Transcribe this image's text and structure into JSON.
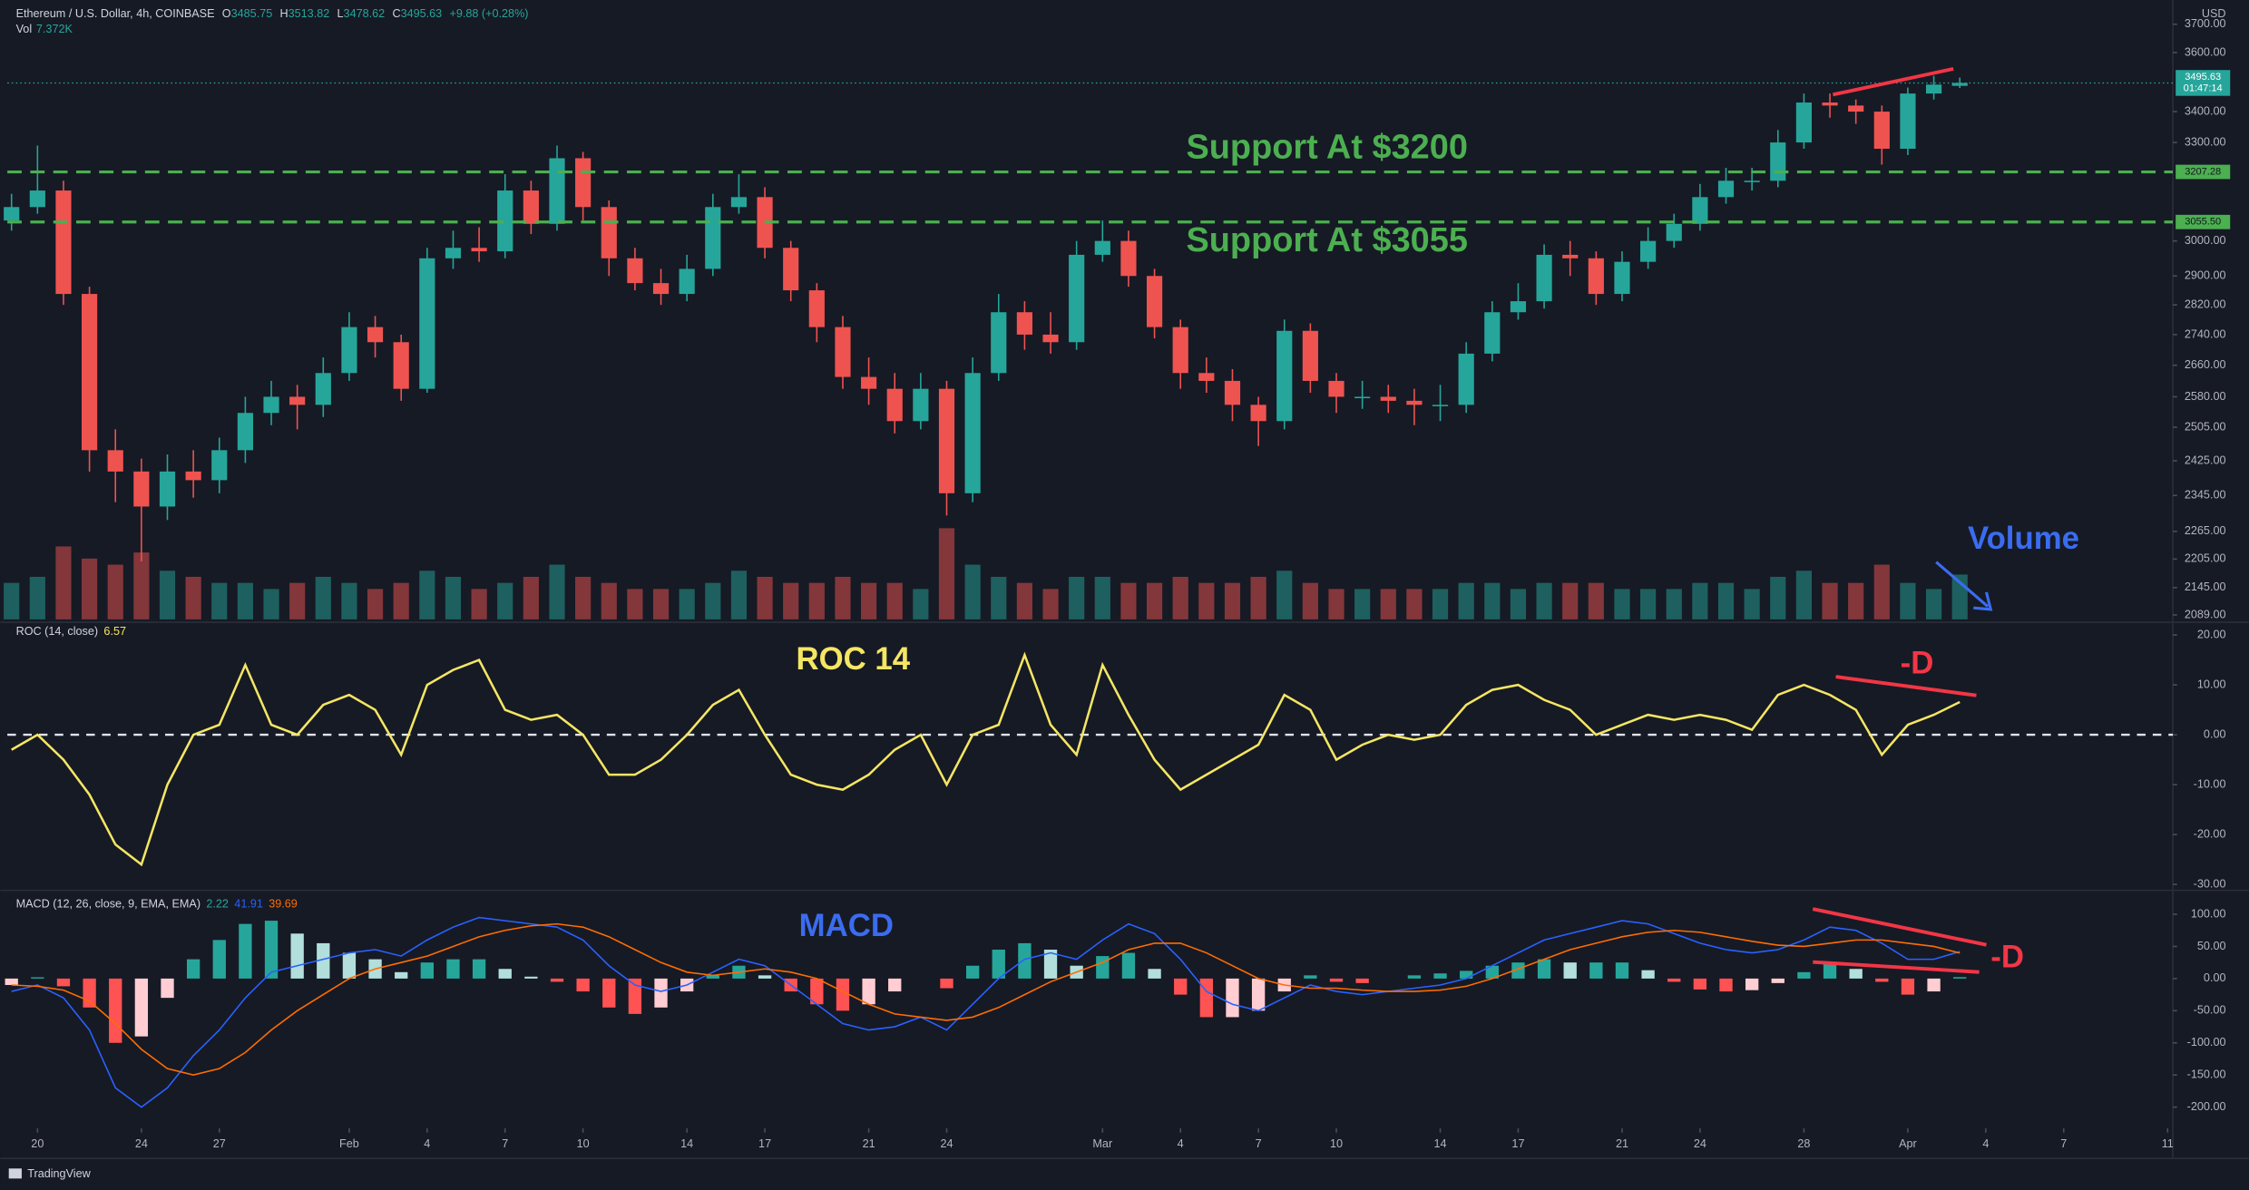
{
  "header": {
    "symbol": "Ethereum / U.S. Dollar, 4h, COINBASE",
    "ohlc": [
      {
        "key": "O",
        "value": 3485.75
      },
      {
        "key": "H",
        "value": 3513.82
      },
      {
        "key": "L",
        "value": 3478.62
      },
      {
        "key": "C",
        "value": 3495.63
      }
    ],
    "change": "+9.88 (+0.28%)",
    "volume_key": "Vol",
    "currency": "USD"
  },
  "chart_data": [
    {
      "type": "candlestick",
      "log_scale": true,
      "up_color": "#26a69a",
      "down_color": "#ef5350",
      "volume_up_color": "rgba(38,166,154,0.5)",
      "volume_down_color": "rgba(239,83,80,0.5)",
      "volume_label": "7.372K",
      "x": [
        -1,
        0,
        1,
        2,
        3,
        4,
        5,
        6,
        7,
        8,
        9,
        10,
        11,
        12,
        13,
        14,
        15,
        16,
        17,
        18,
        19,
        20,
        21,
        22,
        23,
        24,
        25,
        26,
        27,
        28,
        29,
        30,
        31,
        32,
        33,
        34,
        35,
        36,
        37,
        38,
        39,
        40,
        41,
        42,
        43,
        44,
        45,
        46,
        47,
        48,
        49,
        50,
        51,
        52,
        53,
        54,
        55,
        56,
        57,
        58,
        59,
        60,
        61,
        62,
        63,
        64,
        65,
        66,
        67,
        68,
        69,
        70,
        71,
        72,
        73,
        74
      ],
      "open": [
        3060,
        3100,
        3150,
        2850,
        2450,
        2400,
        2320,
        2400,
        2380,
        2450,
        2540,
        2580,
        2560,
        2640,
        2760,
        2720,
        2600,
        2950,
        2980,
        2970,
        3150,
        3050,
        3250,
        3100,
        2950,
        2880,
        2850,
        2920,
        3100,
        3130,
        2980,
        2860,
        2760,
        2630,
        2600,
        2520,
        2600,
        2350,
        2640,
        2800,
        2740,
        2720,
        2960,
        3000,
        2900,
        2760,
        2640,
        2620,
        2560,
        2520,
        2750,
        2620,
        2580,
        2580,
        2570,
        2560,
        2560,
        2690,
        2800,
        2830,
        2960,
        2950,
        2850,
        2940,
        3000,
        3050,
        3130,
        3180,
        3180,
        3300,
        3430,
        3420,
        3400,
        3280,
        3460,
        3485.75
      ],
      "high": [
        3140,
        3290,
        3180,
        2870,
        2500,
        2430,
        2440,
        2450,
        2480,
        2580,
        2620,
        2610,
        2680,
        2800,
        2790,
        2740,
        2980,
        3030,
        3040,
        3200,
        3180,
        3290,
        3270,
        3120,
        2980,
        2920,
        2960,
        3140,
        3200,
        3160,
        3000,
        2880,
        2790,
        2680,
        2640,
        2640,
        2620,
        2680,
        2850,
        2830,
        2800,
        3000,
        3060,
        3030,
        2920,
        2780,
        2680,
        2650,
        2580,
        2780,
        2770,
        2640,
        2620,
        2610,
        2600,
        2610,
        2720,
        2830,
        2880,
        2990,
        3000,
        2970,
        2970,
        3040,
        3080,
        3170,
        3220,
        3220,
        3340,
        3460,
        3460,
        3440,
        3420,
        3480,
        3520,
        3513.82
      ],
      "low": [
        3030,
        3080,
        2820,
        2400,
        2330,
        2200,
        2290,
        2340,
        2350,
        2420,
        2510,
        2500,
        2530,
        2620,
        2680,
        2570,
        2590,
        2920,
        2940,
        2950,
        3020,
        3030,
        3060,
        2900,
        2860,
        2820,
        2830,
        2900,
        3080,
        2950,
        2830,
        2720,
        2600,
        2560,
        2490,
        2500,
        2300,
        2330,
        2620,
        2700,
        2690,
        2700,
        2940,
        2870,
        2730,
        2600,
        2590,
        2520,
        2460,
        2500,
        2590,
        2540,
        2550,
        2540,
        2510,
        2520,
        2540,
        2670,
        2780,
        2810,
        2900,
        2820,
        2830,
        2920,
        2980,
        3030,
        3110,
        3150,
        3160,
        3280,
        3380,
        3360,
        3230,
        3260,
        3440,
        3478.62
      ],
      "close": [
        3100,
        3150,
        2850,
        2450,
        2400,
        2320,
        2400,
        2380,
        2450,
        2540,
        2580,
        2560,
        2640,
        2760,
        2720,
        2600,
        2950,
        2980,
        2970,
        3150,
        3050,
        3250,
        3100,
        2950,
        2880,
        2850,
        2920,
        3100,
        3130,
        2980,
        2860,
        2760,
        2630,
        2600,
        2520,
        2600,
        2350,
        2640,
        2800,
        2740,
        2720,
        2960,
        3000,
        2900,
        2760,
        2640,
        2620,
        2560,
        2520,
        2750,
        2620,
        2580,
        2580,
        2570,
        2560,
        2560,
        2690,
        2800,
        2830,
        2960,
        2950,
        2850,
        2940,
        3000,
        3050,
        3130,
        3180,
        3180,
        3300,
        3430,
        3420,
        3400,
        3280,
        3460,
        3490,
        3495.63
      ],
      "volume": [
        6,
        7,
        12,
        10,
        9,
        11,
        8,
        7,
        6,
        6,
        5,
        6,
        7,
        6,
        5,
        6,
        8,
        7,
        5,
        6,
        7,
        9,
        7,
        6,
        5,
        5,
        5,
        6,
        8,
        7,
        6,
        6,
        7,
        6,
        6,
        5,
        15,
        9,
        7,
        6,
        5,
        7,
        7,
        6,
        6,
        7,
        6,
        6,
        7,
        8,
        6,
        5,
        5,
        5,
        5,
        5,
        6,
        6,
        5,
        6,
        6,
        6,
        5,
        5,
        5,
        6,
        6,
        5,
        7,
        8,
        6,
        6,
        9,
        6,
        5,
        7.372
      ],
      "vlim": [
        0,
        100
      ],
      "xlim": [
        -1.16,
        82.2
      ],
      "ylim": [
        2080,
        3746
      ],
      "yticks": [
        {
          "value": 3700,
          "label": "3700.00"
        },
        {
          "value": 3600,
          "label": "3600.00"
        },
        {
          "value": 3400,
          "label": "3400.00"
        },
        {
          "value": 3300,
          "label": "3300.00"
        },
        {
          "value": 3000,
          "label": "3000.00"
        },
        {
          "value": 2900,
          "label": "2900.00"
        },
        {
          "value": 2820,
          "label": "2820.00"
        },
        {
          "value": 2740,
          "label": "2740.00"
        },
        {
          "value": 2660,
          "label": "2660.00"
        },
        {
          "value": 2580,
          "label": "2580.00"
        },
        {
          "value": 2505,
          "label": "2505.00"
        },
        {
          "value": 2425,
          "label": "2425.00"
        },
        {
          "value": 2345,
          "label": "2345.00"
        },
        {
          "value": 2265,
          "label": "2265.00"
        },
        {
          "value": 2205,
          "label": "2205.00"
        },
        {
          "value": 2145,
          "label": "2145.00"
        },
        {
          "value": 2089,
          "label": "2089.00"
        }
      ],
      "support_lines": [
        {
          "value": 3207.28,
          "label": "3207.28"
        },
        {
          "value": 3055.5,
          "label": "3055.50"
        }
      ],
      "support_color": "#4caf50",
      "last_price": {
        "value": 3495.63,
        "label": "3495.63",
        "countdown": "01:47:14"
      },
      "annotations": [
        "Support At $3200",
        "Support At $3055",
        "Volume"
      ]
    },
    {
      "type": "line",
      "title": "ROC (14, close)",
      "x": [
        -1,
        0,
        1,
        2,
        3,
        4,
        5,
        6,
        7,
        8,
        9,
        10,
        11,
        12,
        13,
        14,
        15,
        16,
        17,
        18,
        19,
        20,
        21,
        22,
        23,
        24,
        25,
        26,
        27,
        28,
        29,
        30,
        31,
        32,
        33,
        34,
        35,
        36,
        37,
        38,
        39,
        40,
        41,
        42,
        43,
        44,
        45,
        46,
        47,
        48,
        49,
        50,
        51,
        52,
        53,
        54,
        55,
        56,
        57,
        58,
        59,
        60,
        61,
        62,
        63,
        64,
        65,
        66,
        67,
        68,
        69,
        70,
        71,
        72,
        73,
        74
      ],
      "series": [
        {
          "name": "ROC",
          "color": "#f5e663",
          "values": [
            -3,
            0,
            -5,
            -12,
            -22,
            -26,
            -10,
            0,
            2,
            14,
            2,
            0,
            6,
            8,
            5,
            -4,
            10,
            13,
            15,
            5,
            3,
            4,
            0,
            -8,
            -8,
            -5,
            0,
            6,
            9,
            0,
            -8,
            -10,
            -11,
            -8,
            -3,
            0,
            -10,
            0,
            2,
            16,
            2,
            -4,
            14,
            4,
            -5,
            -11,
            -8,
            -5,
            -2,
            8,
            5,
            -5,
            -2,
            0,
            -1,
            0,
            6,
            9,
            10,
            7,
            5,
            0,
            2,
            4,
            3,
            4,
            3,
            1,
            8,
            10,
            8,
            5,
            -4,
            2,
            4,
            6.57
          ]
        }
      ],
      "zero_line": true,
      "xlim": [
        -1.16,
        82.2
      ],
      "ylim": [
        -30.9,
        21.7
      ],
      "yticks": [
        {
          "value": 20,
          "label": "20.00"
        },
        {
          "value": 10,
          "label": "10.00"
        },
        {
          "value": 0,
          "label": "0.00"
        },
        {
          "value": -10,
          "label": "-10.00"
        },
        {
          "value": -20,
          "label": "-20.00"
        },
        {
          "value": -30,
          "label": "-30.00"
        }
      ],
      "annotations": [
        "ROC 14",
        "-D"
      ]
    },
    {
      "type": "macd",
      "title": "MACD (12, 26, close, 9, EMA, EMA)",
      "x": [
        -1,
        0,
        1,
        2,
        3,
        4,
        5,
        6,
        7,
        8,
        9,
        10,
        11,
        12,
        13,
        14,
        15,
        16,
        17,
        18,
        19,
        20,
        21,
        22,
        23,
        24,
        25,
        26,
        27,
        28,
        29,
        30,
        31,
        32,
        33,
        34,
        35,
        36,
        37,
        38,
        39,
        40,
        41,
        42,
        43,
        44,
        45,
        46,
        47,
        48,
        49,
        50,
        51,
        52,
        53,
        54,
        55,
        56,
        57,
        58,
        59,
        60,
        61,
        62,
        63,
        64,
        65,
        66,
        67,
        68,
        69,
        70,
        71,
        72,
        73,
        74
      ],
      "series": [
        {
          "name": "MACD",
          "color": "#2962ff",
          "values": [
            -20,
            -10,
            -30,
            -80,
            -170,
            -200,
            -170,
            -120,
            -80,
            -30,
            10,
            20,
            30,
            40,
            45,
            35,
            60,
            80,
            95,
            90,
            85,
            80,
            60,
            20,
            -10,
            -20,
            -10,
            10,
            30,
            20,
            -10,
            -40,
            -70,
            -80,
            -75,
            -60,
            -80,
            -40,
            0,
            30,
            40,
            30,
            60,
            85,
            70,
            30,
            -20,
            -40,
            -50,
            -30,
            -10,
            -20,
            -25,
            -20,
            -15,
            -10,
            0,
            20,
            40,
            60,
            70,
            80,
            90,
            85,
            70,
            55,
            45,
            40,
            45,
            60,
            80,
            75,
            55,
            30,
            30,
            41.91
          ]
        },
        {
          "name": "Signal",
          "color": "#ff6d00",
          "values": [
            -10,
            -12,
            -18,
            -35,
            -70,
            -110,
            -140,
            -150,
            -140,
            -115,
            -80,
            -50,
            -25,
            0,
            15,
            25,
            35,
            50,
            65,
            75,
            82,
            85,
            80,
            65,
            45,
            25,
            10,
            5,
            10,
            15,
            10,
            0,
            -20,
            -40,
            -55,
            -60,
            -65,
            -60,
            -45,
            -25,
            -5,
            10,
            25,
            45,
            55,
            55,
            40,
            20,
            0,
            -10,
            -15,
            -15,
            -18,
            -20,
            -20,
            -18,
            -12,
            0,
            15,
            30,
            45,
            55,
            65,
            72,
            75,
            72,
            65,
            58,
            52,
            50,
            55,
            60,
            60,
            55,
            50,
            39.69
          ]
        },
        {
          "name": "Histogram",
          "color": "#26a69a",
          "values": [
            -10,
            2,
            -12,
            -45,
            -100,
            -90,
            -30,
            30,
            60,
            85,
            90,
            70,
            55,
            40,
            30,
            10,
            25,
            30,
            30,
            15,
            3,
            -5,
            -20,
            -45,
            -55,
            -45,
            -20,
            5,
            20,
            5,
            -20,
            -40,
            -50,
            -40,
            -20,
            0,
            -15,
            20,
            45,
            55,
            45,
            20,
            35,
            40,
            15,
            -25,
            -60,
            -60,
            -50,
            -20,
            5,
            -5,
            -7,
            0,
            5,
            8,
            12,
            20,
            25,
            30,
            25,
            25,
            25,
            13,
            -5,
            -17,
            -20,
            -18,
            -7,
            10,
            25,
            15,
            -5,
            -25,
            -20,
            2.22
          ]
        }
      ],
      "histogram_colors": [
        "#26a69a",
        "#b2dfdb",
        "#ffcdd2",
        "#ff5252"
      ],
      "xlim": [
        -1.16,
        82.2
      ],
      "ylim": [
        -233,
        135
      ],
      "yticks": [
        {
          "value": 100,
          "label": "100.00"
        },
        {
          "value": 50,
          "label": "50.00"
        },
        {
          "value": 0,
          "label": "0.00"
        },
        {
          "value": -50,
          "label": "-50.00"
        },
        {
          "value": -100,
          "label": "-100.00"
        },
        {
          "value": -150,
          "label": "-150.00"
        },
        {
          "value": -200,
          "label": "-200.00"
        }
      ],
      "xticks": [
        {
          "value": 0,
          "label": "20"
        },
        {
          "value": 4,
          "label": "24"
        },
        {
          "value": 7,
          "label": "27"
        },
        {
          "value": 12,
          "label": "Feb"
        },
        {
          "value": 15,
          "label": "4"
        },
        {
          "value": 18,
          "label": "7"
        },
        {
          "value": 21,
          "label": "10"
        },
        {
          "value": 25,
          "label": "14"
        },
        {
          "value": 28,
          "label": "17"
        },
        {
          "value": 32,
          "label": "21"
        },
        {
          "value": 35,
          "label": "24"
        },
        {
          "value": 41,
          "label": "Mar"
        },
        {
          "value": 44,
          "label": "4"
        },
        {
          "value": 47,
          "label": "7"
        },
        {
          "value": 50,
          "label": "10"
        },
        {
          "value": 54,
          "label": "14"
        },
        {
          "value": 57,
          "label": "17"
        },
        {
          "value": 61,
          "label": "21"
        },
        {
          "value": 64,
          "label": "24"
        },
        {
          "value": 68,
          "label": "28"
        },
        {
          "value": 72,
          "label": "Apr"
        },
        {
          "value": 75,
          "label": "4"
        },
        {
          "value": 78,
          "label": "7"
        },
        {
          "value": 82,
          "label": "11"
        }
      ],
      "annotations": [
        "MACD",
        "-D"
      ]
    }
  ],
  "footer": "TradingView"
}
